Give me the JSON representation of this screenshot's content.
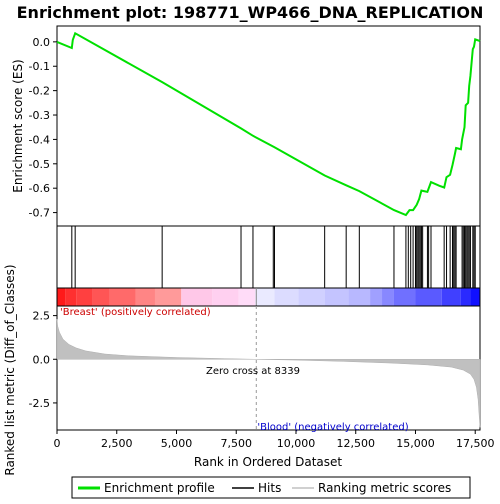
{
  "chart_data": {
    "type": "line",
    "title": "Enrichment plot: 198771_WP466_DNA_REPLICATION",
    "colors": {
      "enrichment": "#00e000",
      "hits": "#000000",
      "ranking": "#c0c0c0"
    },
    "x_axis": {
      "label": "Rank in Ordered Dataset",
      "ticks": [
        "0",
        "2,500",
        "5,000",
        "7,500",
        "10,000",
        "12,500",
        "15,000",
        "17,500"
      ],
      "tick_values": [
        0,
        2500,
        5000,
        7500,
        10000,
        12500,
        15000,
        17500
      ],
      "range": [
        0,
        17700
      ]
    },
    "es_panel": {
      "ylabel": "Enrichment score (ES)",
      "yticks": [
        "0.0",
        "-0.1",
        "-0.2",
        "-0.3",
        "-0.4",
        "-0.5",
        "-0.6",
        "-0.7"
      ],
      "ytick_values": [
        0.0,
        -0.1,
        -0.2,
        -0.3,
        -0.4,
        -0.5,
        -0.6,
        -0.7
      ],
      "ylim": [
        -0.755,
        0.065
      ],
      "curve": [
        [
          0,
          0.0
        ],
        [
          620,
          -0.025
        ],
        [
          660,
          0.008
        ],
        [
          760,
          0.035
        ],
        [
          4400,
          -0.165
        ],
        [
          7700,
          -0.355
        ],
        [
          8200,
          -0.385
        ],
        [
          9100,
          -0.432
        ],
        [
          11200,
          -0.548
        ],
        [
          12100,
          -0.588
        ],
        [
          12650,
          -0.612
        ],
        [
          14100,
          -0.69
        ],
        [
          14600,
          -0.71
        ],
        [
          14750,
          -0.69
        ],
        [
          14900,
          -0.69
        ],
        [
          15050,
          -0.668
        ],
        [
          15150,
          -0.645
        ],
        [
          15250,
          -0.61
        ],
        [
          15500,
          -0.615
        ],
        [
          15650,
          -0.575
        ],
        [
          16000,
          -0.59
        ],
        [
          16200,
          -0.597
        ],
        [
          16300,
          -0.555
        ],
        [
          16450,
          -0.545
        ],
        [
          16550,
          -0.505
        ],
        [
          16650,
          -0.46
        ],
        [
          16700,
          -0.435
        ],
        [
          16900,
          -0.44
        ],
        [
          16950,
          -0.4
        ],
        [
          17050,
          -0.35
        ],
        [
          17100,
          -0.26
        ],
        [
          17200,
          -0.25
        ],
        [
          17250,
          -0.18
        ],
        [
          17300,
          -0.14
        ],
        [
          17400,
          -0.03
        ],
        [
          17450,
          -0.02
        ],
        [
          17500,
          0.01
        ],
        [
          17700,
          0.003
        ]
      ]
    },
    "hits": [
      620,
      760,
      4400,
      7700,
      8200,
      9050,
      9100,
      11200,
      12100,
      12650,
      14100,
      14600,
      14700,
      14800,
      14900,
      15000,
      15050,
      15100,
      15150,
      15200,
      15250,
      15300,
      15500,
      15550,
      15650,
      16200,
      16300,
      16450,
      16550,
      16600,
      16650,
      16700,
      16950,
      17000,
      17050,
      17100,
      17150,
      17200,
      17250,
      17300,
      17400,
      17450,
      17500
    ],
    "ranking_panel": {
      "ylabel": "Ranked list metric (Diff_of_Classes)",
      "yticks": [
        "2.5",
        "0.0",
        "-2.5"
      ],
      "ytick_values": [
        2.5,
        0.0,
        -2.5
      ],
      "ylim": [
        -4.05,
        3.05
      ],
      "profile": [
        [
          0,
          2.3
        ],
        [
          30,
          1.9
        ],
        [
          100,
          1.55
        ],
        [
          250,
          1.15
        ],
        [
          500,
          0.85
        ],
        [
          800,
          0.65
        ],
        [
          1200,
          0.48
        ],
        [
          2000,
          0.3
        ],
        [
          3000,
          0.2
        ],
        [
          5000,
          0.1
        ],
        [
          7000,
          0.04
        ],
        [
          8339,
          0.0
        ],
        [
          10000,
          -0.05
        ],
        [
          12000,
          -0.12
        ],
        [
          14000,
          -0.22
        ],
        [
          15500,
          -0.32
        ],
        [
          16500,
          -0.45
        ],
        [
          17000,
          -0.62
        ],
        [
          17300,
          -0.85
        ],
        [
          17450,
          -1.15
        ],
        [
          17550,
          -1.6
        ],
        [
          17620,
          -2.3
        ],
        [
          17660,
          -3.1
        ],
        [
          17700,
          -3.9
        ]
      ],
      "zero_cross_label": "Zero cross at 8339",
      "zero_cross": 8339,
      "pos_label": "'Breast' (positively correlated)",
      "neg_label": "'Blood' (negatively correlated)"
    },
    "legend": {
      "items": [
        "Enrichment profile",
        "Hits",
        "Ranking metric scores"
      ],
      "placement": "bottom"
    }
  }
}
